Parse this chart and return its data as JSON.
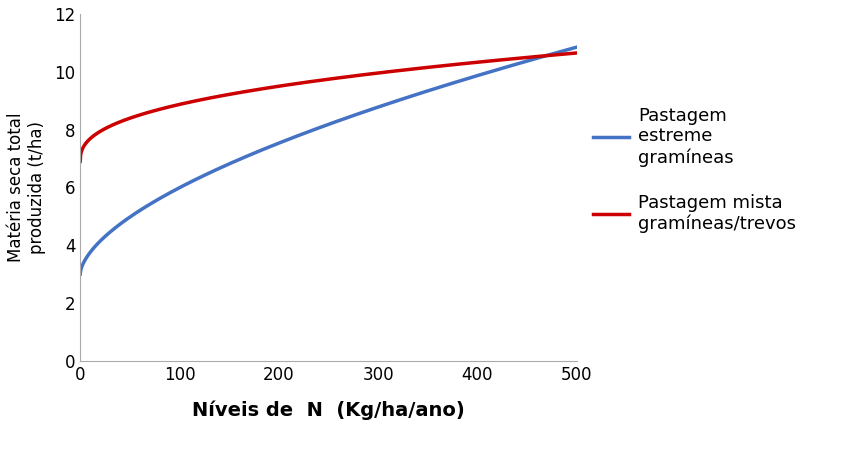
{
  "title": "",
  "xlabel": "Níveis de  N  (Kg/ha/ano)",
  "ylabel": "Matéria seca total\nproduzida (t/ha)",
  "xlim": [
    0,
    500
  ],
  "ylim": [
    0,
    12
  ],
  "xticks": [
    0,
    100,
    200,
    300,
    400,
    500
  ],
  "yticks": [
    0,
    2,
    4,
    6,
    8,
    10,
    12
  ],
  "blue_color": "#4472C4",
  "red_color": "#CC0000",
  "blue_label_line1": "Pastagem",
  "blue_label_line2": "estreme",
  "blue_label_line3": "gramíneas",
  "red_label_line1": "Pastagem mista",
  "red_label_line2": "gramíneas/trevos",
  "linewidth": 2.5,
  "xlabel_fontsize": 14,
  "ylabel_fontsize": 12,
  "tick_fontsize": 12,
  "legend_fontsize": 13,
  "background_color": "#ffffff"
}
